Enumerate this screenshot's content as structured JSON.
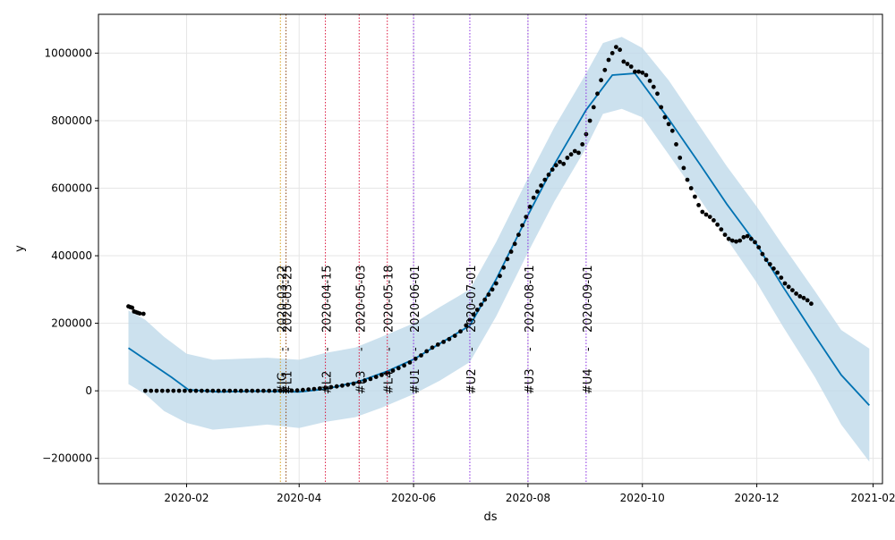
{
  "chart_data": {
    "type": "line",
    "title": "",
    "xlabel": "ds",
    "ylabel": "y",
    "x_range": [
      "2019-12-16",
      "2021-02-06"
    ],
    "ylim": [
      -275000,
      1115000
    ],
    "grid": true,
    "x_ticks": [
      "2020-02",
      "2020-04",
      "2020-06",
      "2020-08",
      "2020-10",
      "2020-12",
      "2021-02"
    ],
    "y_ticks": [
      -200000,
      0,
      200000,
      400000,
      600000,
      800000,
      1000000
    ],
    "y_tick_labels": [
      "−200000",
      "0",
      "200000",
      "400000",
      "600000",
      "800000",
      "1000000"
    ],
    "colors": {
      "forecast_line": "#0072B2",
      "uncertainty_band": "#BFD9EA",
      "observed_points": "#000000",
      "grid": "#e6e6e6"
    },
    "events": [
      {
        "date": "2020-03-22",
        "label": "2020-03-22",
        "code": "#IG",
        "color": "#DAA520"
      },
      {
        "date": "2020-03-25",
        "label": "2020-03-25",
        "code": "#L1",
        "color": "#8B4513"
      },
      {
        "date": "2020-04-15",
        "label": "2020-04-15",
        "code": "#L2",
        "color": "#DC143C"
      },
      {
        "date": "2020-05-03",
        "label": "2020-05-03",
        "code": "#L3",
        "color": "#DC143C"
      },
      {
        "date": "2020-05-18",
        "label": "2020-05-18",
        "code": "#L4",
        "color": "#DC143C"
      },
      {
        "date": "2020-06-01",
        "label": "2020-06-01",
        "code": "#U1",
        "color": "#8A2BE2"
      },
      {
        "date": "2020-07-01",
        "label": "2020-07-01",
        "code": "#U2",
        "color": "#8A2BE2"
      },
      {
        "date": "2020-08-01",
        "label": "2020-08-01",
        "code": "#U3",
        "color": "#8A2BE2"
      },
      {
        "date": "2020-09-01",
        "label": "2020-09-01",
        "code": "#U4",
        "color": "#8A2BE2"
      }
    ],
    "event_separator": "-",
    "series": [
      {
        "kind": "forecast_yhat",
        "points": [
          [
            "2020-01-01",
            127000
          ],
          [
            "2020-01-24",
            40000
          ],
          [
            "2020-02-02",
            3000
          ],
          [
            "2020-02-18",
            -3000
          ],
          [
            "2020-03-10",
            -1000
          ],
          [
            "2020-04-01",
            -3000
          ],
          [
            "2020-04-15",
            5000
          ],
          [
            "2020-05-03",
            28000
          ],
          [
            "2020-05-18",
            58000
          ],
          [
            "2020-06-01",
            93000
          ],
          [
            "2020-06-15",
            140000
          ],
          [
            "2020-07-01",
            193000
          ],
          [
            "2020-07-15",
            330000
          ],
          [
            "2020-08-01",
            520000
          ],
          [
            "2020-08-15",
            670000
          ],
          [
            "2020-09-01",
            832000
          ],
          [
            "2020-09-15",
            935000
          ],
          [
            "2020-09-27",
            940000
          ],
          [
            "2020-10-15",
            805000
          ],
          [
            "2020-11-01",
            668000
          ],
          [
            "2020-11-15",
            553000
          ],
          [
            "2020-12-01",
            433000
          ],
          [
            "2020-12-15",
            308000
          ],
          [
            "2021-01-01",
            163000
          ],
          [
            "2021-01-15",
            47000
          ],
          [
            "2021-01-30",
            -43000
          ]
        ]
      },
      {
        "kind": "uncertainty_upper",
        "points": [
          [
            "2020-01-01",
            238000
          ],
          [
            "2020-01-10",
            210000
          ],
          [
            "2020-01-20",
            160000
          ],
          [
            "2020-02-01",
            110000
          ],
          [
            "2020-02-15",
            92000
          ],
          [
            "2020-03-01",
            95000
          ],
          [
            "2020-03-15",
            98000
          ],
          [
            "2020-04-01",
            92000
          ],
          [
            "2020-04-15",
            112000
          ],
          [
            "2020-05-01",
            128000
          ],
          [
            "2020-05-15",
            160000
          ],
          [
            "2020-06-01",
            200000
          ],
          [
            "2020-06-15",
            248000
          ],
          [
            "2020-07-01",
            300000
          ],
          [
            "2020-07-15",
            440000
          ],
          [
            "2020-08-01",
            630000
          ],
          [
            "2020-08-15",
            780000
          ],
          [
            "2020-09-01",
            940000
          ],
          [
            "2020-09-10",
            1030000
          ],
          [
            "2020-09-20",
            1048000
          ],
          [
            "2020-10-01",
            1015000
          ],
          [
            "2020-10-15",
            920000
          ],
          [
            "2020-11-01",
            780000
          ],
          [
            "2020-11-15",
            665000
          ],
          [
            "2020-12-01",
            545000
          ],
          [
            "2020-12-15",
            430000
          ],
          [
            "2021-01-01",
            295000
          ],
          [
            "2021-01-15",
            180000
          ],
          [
            "2021-01-30",
            125000
          ]
        ]
      },
      {
        "kind": "uncertainty_lower",
        "points": [
          [
            "2020-01-01",
            20000
          ],
          [
            "2020-01-10",
            -10000
          ],
          [
            "2020-01-20",
            -60000
          ],
          [
            "2020-02-01",
            -95000
          ],
          [
            "2020-02-15",
            -115000
          ],
          [
            "2020-03-01",
            -108000
          ],
          [
            "2020-03-15",
            -100000
          ],
          [
            "2020-04-01",
            -110000
          ],
          [
            "2020-04-15",
            -92000
          ],
          [
            "2020-05-01",
            -78000
          ],
          [
            "2020-05-15",
            -50000
          ],
          [
            "2020-06-01",
            -10000
          ],
          [
            "2020-06-15",
            30000
          ],
          [
            "2020-07-01",
            85000
          ],
          [
            "2020-07-15",
            220000
          ],
          [
            "2020-08-01",
            410000
          ],
          [
            "2020-08-15",
            560000
          ],
          [
            "2020-09-01",
            720000
          ],
          [
            "2020-09-10",
            820000
          ],
          [
            "2020-09-20",
            835000
          ],
          [
            "2020-10-01",
            810000
          ],
          [
            "2020-10-15",
            700000
          ],
          [
            "2020-11-01",
            565000
          ],
          [
            "2020-11-15",
            450000
          ],
          [
            "2020-12-01",
            320000
          ],
          [
            "2020-12-15",
            190000
          ],
          [
            "2021-01-01",
            40000
          ],
          [
            "2021-01-15",
            -100000
          ],
          [
            "2021-01-30",
            -210000
          ]
        ]
      },
      {
        "kind": "observed",
        "points": [
          [
            "2020-01-01",
            250000
          ],
          [
            "2020-01-02",
            248000
          ],
          [
            "2020-01-03",
            246000
          ],
          [
            "2020-01-04",
            235000
          ],
          [
            "2020-01-05",
            233000
          ],
          [
            "2020-01-06",
            231000
          ],
          [
            "2020-01-07",
            229000
          ],
          [
            "2020-01-09",
            228000
          ],
          [
            "2020-01-10",
            0
          ],
          [
            "2020-01-13",
            0
          ],
          [
            "2020-01-16",
            0
          ],
          [
            "2020-01-19",
            0
          ],
          [
            "2020-01-22",
            0
          ],
          [
            "2020-01-25",
            0
          ],
          [
            "2020-01-28",
            0
          ],
          [
            "2020-01-31",
            0
          ],
          [
            "2020-02-03",
            0
          ],
          [
            "2020-02-06",
            0
          ],
          [
            "2020-02-09",
            0
          ],
          [
            "2020-02-12",
            0
          ],
          [
            "2020-02-15",
            0
          ],
          [
            "2020-02-18",
            0
          ],
          [
            "2020-02-21",
            0
          ],
          [
            "2020-02-24",
            0
          ],
          [
            "2020-02-27",
            0
          ],
          [
            "2020-03-01",
            0
          ],
          [
            "2020-03-04",
            0
          ],
          [
            "2020-03-07",
            0
          ],
          [
            "2020-03-10",
            0
          ],
          [
            "2020-03-13",
            0
          ],
          [
            "2020-03-16",
            0
          ],
          [
            "2020-03-19",
            0
          ],
          [
            "2020-03-22",
            0
          ],
          [
            "2020-03-25",
            200
          ],
          [
            "2020-03-28",
            500
          ],
          [
            "2020-03-31",
            1200
          ],
          [
            "2020-04-03",
            2500
          ],
          [
            "2020-04-06",
            4000
          ],
          [
            "2020-04-09",
            5500
          ],
          [
            "2020-04-12",
            7000
          ],
          [
            "2020-04-15",
            9000
          ],
          [
            "2020-04-18",
            11000
          ],
          [
            "2020-04-21",
            13000
          ],
          [
            "2020-04-24",
            15500
          ],
          [
            "2020-04-27",
            18000
          ],
          [
            "2020-04-30",
            21000
          ],
          [
            "2020-05-03",
            26000
          ],
          [
            "2020-05-06",
            30000
          ],
          [
            "2020-05-09",
            35000
          ],
          [
            "2020-05-12",
            41000
          ],
          [
            "2020-05-15",
            47000
          ],
          [
            "2020-05-18",
            53000
          ],
          [
            "2020-05-21",
            60000
          ],
          [
            "2020-05-24",
            67000
          ],
          [
            "2020-05-27",
            75000
          ],
          [
            "2020-05-30",
            84000
          ],
          [
            "2020-06-02",
            95000
          ],
          [
            "2020-06-05",
            105000
          ],
          [
            "2020-06-08",
            117000
          ],
          [
            "2020-06-11",
            128000
          ],
          [
            "2020-06-14",
            137000
          ],
          [
            "2020-06-17",
            145000
          ],
          [
            "2020-06-20",
            153000
          ],
          [
            "2020-06-23",
            163000
          ],
          [
            "2020-06-26",
            176000
          ],
          [
            "2020-06-29",
            194000
          ],
          [
            "2020-07-01",
            210000
          ],
          [
            "2020-07-03",
            226000
          ],
          [
            "2020-07-05",
            240000
          ],
          [
            "2020-07-07",
            255000
          ],
          [
            "2020-07-09",
            270000
          ],
          [
            "2020-07-11",
            285000
          ],
          [
            "2020-07-13",
            300000
          ],
          [
            "2020-07-15",
            318000
          ],
          [
            "2020-07-17",
            340000
          ],
          [
            "2020-07-19",
            365000
          ],
          [
            "2020-07-21",
            390000
          ],
          [
            "2020-07-23",
            412000
          ],
          [
            "2020-07-25",
            435000
          ],
          [
            "2020-07-27",
            462000
          ],
          [
            "2020-07-29",
            490000
          ],
          [
            "2020-07-31",
            515000
          ],
          [
            "2020-08-02",
            545000
          ],
          [
            "2020-08-04",
            572000
          ],
          [
            "2020-08-06",
            590000
          ],
          [
            "2020-08-08",
            608000
          ],
          [
            "2020-08-10",
            625000
          ],
          [
            "2020-08-12",
            640000
          ],
          [
            "2020-08-14",
            655000
          ],
          [
            "2020-08-16",
            668000
          ],
          [
            "2020-08-18",
            678000
          ],
          [
            "2020-08-20",
            672000
          ],
          [
            "2020-08-22",
            690000
          ],
          [
            "2020-08-24",
            700000
          ],
          [
            "2020-08-26",
            710000
          ],
          [
            "2020-08-28",
            705000
          ],
          [
            "2020-08-30",
            730000
          ],
          [
            "2020-09-01",
            760000
          ],
          [
            "2020-09-03",
            800000
          ],
          [
            "2020-09-05",
            840000
          ],
          [
            "2020-09-07",
            880000
          ],
          [
            "2020-09-09",
            920000
          ],
          [
            "2020-09-11",
            950000
          ],
          [
            "2020-09-13",
            980000
          ],
          [
            "2020-09-15",
            1000000
          ],
          [
            "2020-09-17",
            1018000
          ],
          [
            "2020-09-19",
            1010000
          ],
          [
            "2020-09-21",
            975000
          ],
          [
            "2020-09-23",
            968000
          ],
          [
            "2020-09-25",
            960000
          ],
          [
            "2020-09-27",
            945000
          ],
          [
            "2020-09-29",
            945000
          ],
          [
            "2020-10-01",
            942000
          ],
          [
            "2020-10-03",
            935000
          ],
          [
            "2020-10-05",
            918000
          ],
          [
            "2020-10-07",
            900000
          ],
          [
            "2020-10-09",
            880000
          ],
          [
            "2020-10-11",
            840000
          ],
          [
            "2020-10-13",
            810000
          ],
          [
            "2020-10-15",
            790000
          ],
          [
            "2020-10-17",
            770000
          ],
          [
            "2020-10-19",
            730000
          ],
          [
            "2020-10-21",
            690000
          ],
          [
            "2020-10-23",
            660000
          ],
          [
            "2020-10-25",
            625000
          ],
          [
            "2020-10-27",
            600000
          ],
          [
            "2020-10-29",
            575000
          ],
          [
            "2020-10-31",
            550000
          ],
          [
            "2020-11-02",
            530000
          ],
          [
            "2020-11-04",
            522000
          ],
          [
            "2020-11-06",
            515000
          ],
          [
            "2020-11-08",
            505000
          ],
          [
            "2020-11-10",
            492000
          ],
          [
            "2020-11-12",
            478000
          ],
          [
            "2020-11-14",
            462000
          ],
          [
            "2020-11-16",
            450000
          ],
          [
            "2020-11-18",
            445000
          ],
          [
            "2020-11-20",
            442000
          ],
          [
            "2020-11-22",
            445000
          ],
          [
            "2020-11-24",
            455000
          ],
          [
            "2020-11-26",
            458000
          ],
          [
            "2020-11-28",
            450000
          ],
          [
            "2020-11-30",
            440000
          ],
          [
            "2020-12-02",
            425000
          ],
          [
            "2020-12-04",
            405000
          ],
          [
            "2020-12-06",
            388000
          ],
          [
            "2020-12-08",
            375000
          ],
          [
            "2020-12-10",
            362000
          ],
          [
            "2020-12-12",
            350000
          ],
          [
            "2020-12-14",
            335000
          ],
          [
            "2020-12-16",
            318000
          ],
          [
            "2020-12-18",
            308000
          ],
          [
            "2020-12-20",
            298000
          ],
          [
            "2020-12-22",
            288000
          ],
          [
            "2020-12-24",
            280000
          ],
          [
            "2020-12-26",
            275000
          ],
          [
            "2020-12-28",
            268000
          ],
          [
            "2020-12-30",
            258000
          ]
        ]
      }
    ]
  }
}
